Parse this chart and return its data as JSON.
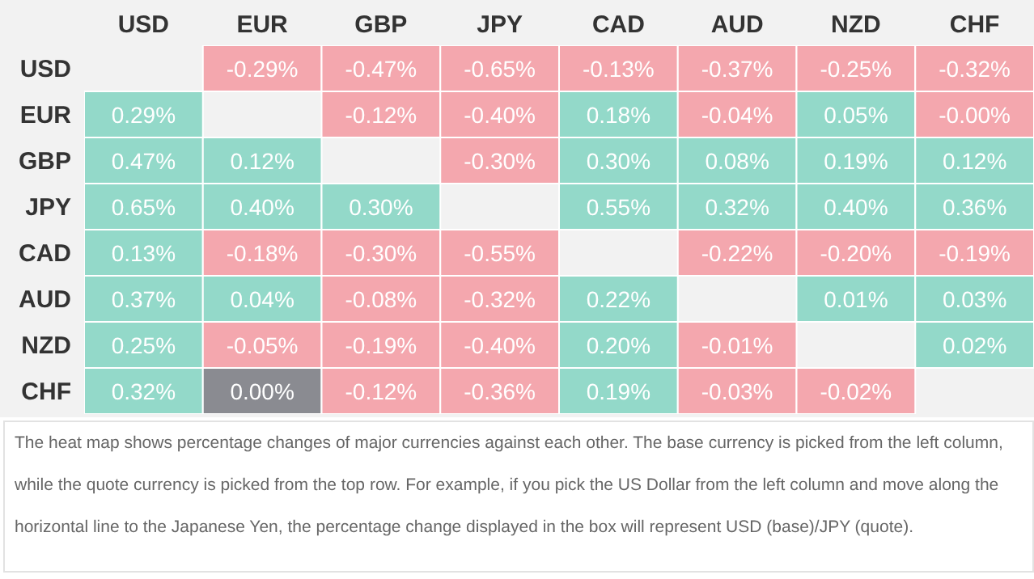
{
  "chart_data": {
    "type": "heatmap",
    "categories": [
      "USD",
      "EUR",
      "GBP",
      "JPY",
      "CAD",
      "AUD",
      "NZD",
      "CHF"
    ],
    "y_categories": [
      "USD",
      "EUR",
      "GBP",
      "JPY",
      "CAD",
      "AUD",
      "NZD",
      "CHF"
    ],
    "cells": [
      [
        null,
        -0.29,
        -0.47,
        -0.65,
        -0.13,
        -0.37,
        -0.25,
        -0.32
      ],
      [
        0.29,
        null,
        -0.12,
        -0.4,
        0.18,
        -0.04,
        0.05,
        -0.0
      ],
      [
        0.47,
        0.12,
        null,
        -0.3,
        0.3,
        0.08,
        0.19,
        0.12
      ],
      [
        0.65,
        0.4,
        0.3,
        null,
        0.55,
        0.32,
        0.4,
        0.36
      ],
      [
        0.13,
        -0.18,
        -0.3,
        -0.55,
        null,
        -0.22,
        -0.2,
        -0.19
      ],
      [
        0.37,
        0.04,
        -0.08,
        -0.32,
        0.22,
        null,
        0.01,
        0.03
      ],
      [
        0.25,
        -0.05,
        -0.19,
        -0.4,
        0.2,
        -0.01,
        null,
        0.02
      ],
      [
        0.32,
        0.0,
        -0.12,
        -0.36,
        0.19,
        -0.03,
        -0.02,
        null
      ]
    ],
    "cell_labels": [
      [
        null,
        "-0.29%",
        "-0.47%",
        "-0.65%",
        "-0.13%",
        "-0.37%",
        "-0.25%",
        "-0.32%"
      ],
      [
        "0.29%",
        null,
        "-0.12%",
        "-0.40%",
        "0.18%",
        "-0.04%",
        "0.05%",
        "-0.00%"
      ],
      [
        "0.47%",
        "0.12%",
        null,
        "-0.30%",
        "0.30%",
        "0.08%",
        "0.19%",
        "0.12%"
      ],
      [
        "0.65%",
        "0.40%",
        "0.30%",
        null,
        "0.55%",
        "0.32%",
        "0.40%",
        "0.36%"
      ],
      [
        "0.13%",
        "-0.18%",
        "-0.30%",
        "-0.55%",
        null,
        "-0.22%",
        "-0.20%",
        "-0.19%"
      ],
      [
        "0.37%",
        "0.04%",
        "-0.08%",
        "-0.32%",
        "0.22%",
        null,
        "0.01%",
        "0.03%"
      ],
      [
        "0.25%",
        "-0.05%",
        "-0.19%",
        "-0.40%",
        "0.20%",
        "-0.01%",
        null,
        "0.02%"
      ],
      [
        "0.32%",
        "0.00%",
        "-0.12%",
        "-0.36%",
        "0.19%",
        "-0.03%",
        "-0.02%",
        null
      ]
    ],
    "colors": [
      "#f4a7ae",
      "#8a8b91",
      "#93d9c9"
    ],
    "annotations": [
      "The heat map shows percentage changes of major currencies against each other. The base currency is picked from the left column, while the quote currency is picked from the top row. For example, if you pick the US Dollar from the left column and move along the horizontal line to the Japanese Yen, the percentage change displayed in the box will represent USD (base)/JPY (quote)."
    ]
  }
}
